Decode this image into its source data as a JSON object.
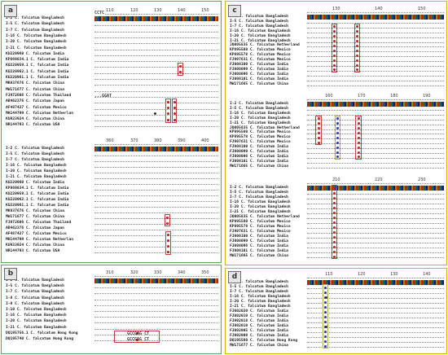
{
  "colors": {
    "green_border": "#5aa65a",
    "gold_border": "#d2b100",
    "highlight": "#c93a3a",
    "olive": "#b8a24a"
  },
  "panels": {
    "a": {
      "label": "a",
      "blocks": [
        {
          "ticks": [
            "110",
            "120",
            "130",
            "140",
            "150"
          ],
          "names": [
            "I-2 C. falcatum Bangladesh",
            "I-5 C. falcatum Bangladesh",
            "I-7 C. falcatum Bangladesh",
            "I-16 C. falcatum Bangladesh",
            "I-20 C. falcatum Bangladesh",
            "I-21 C. falcatum Bangladesh",
            "KU220960 C. falcatum India",
            "KP869834.1 C. falcatum India",
            "KU220959.1 C. falcatum India",
            "KU220962.1 C. falcatum India",
            "KU220961.1 C. falcatum India",
            "MK937676 C. falcatum China",
            "MW171677 C. falcatum China",
            "FJ972606 C. falcatum Thailand",
            "AB462376 C. falcatum Japan",
            "AF487427 C. falcatum Mexico",
            "MH144799 C. falcatum Netherlan",
            "KU933924 C. falcatum China",
            "NR144793 C. falcatum USA"
          ],
          "fragments": [
            "CCTC",
            "...GGAT"
          ]
        },
        {
          "ticks": [
            "360",
            "370",
            "380",
            "390",
            "400"
          ],
          "names": [
            "I-2 C. falcatum Bangladesh",
            "I-5 C. falcatum Bangladesh",
            "I-7 C. falcatum Bangladesh",
            "I-16 C. falcatum Bangladesh",
            "I-20 C. falcatum Bangladesh",
            "I-21 C. falcatum Bangladesh",
            "KU220960 C. falcatum India",
            "KP869834.1 C. falcatum India",
            "KU220959.1 C. falcatum India",
            "KU220962.1 C. falcatum India",
            "KU220961.1 C. falcatum India",
            "MK937676 C. falcatum China",
            "MW171677 C. falcatum China",
            "FJ972606 C. falcatum Thailand",
            "AB462376 C. falcatum Japan",
            "AF487427 C. falcatum Mexico",
            "MH144799 C. falcatum Netherlan",
            "KU933924 C. falcatum China",
            "NR144793 C. falcatum USA"
          ],
          "fragments": []
        }
      ]
    },
    "b": {
      "label": "b",
      "blocks": [
        {
          "ticks": [
            "310",
            "320",
            "330",
            "340",
            "350"
          ],
          "names": [
            "I-2 C. falcatum Bangladesh",
            "I-5 C. falcatum Bangladesh",
            "I-7 C. falcatum Bangladesh",
            "I-8 C. falcatum Bangladesh",
            "I-9 C. falcatum Bangladesh",
            "I-10 C. falcatum Bangladesh",
            "I-16 C. falcatum Bangladesh",
            "I-20 C. falcatum Bangladesh",
            "I-21 C. falcatum Bangladesh",
            "DQ195756.1 C. falcatum Hong Kong",
            "DQ195740 C. falcatum Hong Kong"
          ],
          "fragments": [
            "GCCGAG CT",
            "GCCGAG CT"
          ]
        }
      ]
    },
    "c": {
      "label": "c",
      "blocks": [
        {
          "ticks": [
            "130",
            "140",
            "150"
          ],
          "names": [
            "I-2 C. falcatum Bangladesh",
            "I-5 C. falcatum Bangladesh",
            "I-7 C. falcatum Bangladesh",
            "I-16 C. falcatum Bangladesh",
            "I-20 C. falcatum Bangladesh",
            "I-21 C. falcatum Bangladesh",
            "JQ005835 C. falcatum Netherland",
            "KP895580 C. falcatum Mexico",
            "KP895578 C. falcatum Mexico",
            "FJ907631 C. falcatum Mexico",
            "FJ008100 C. falcatum India",
            "FJ008099 C. falcatum India",
            "FJ008096 C. falcatum India",
            "FJ008101 C. falcatum India",
            "MW171665 C. falcatum China"
          ],
          "fragments": []
        },
        {
          "ticks": [
            "160",
            "170",
            "180",
            "190"
          ],
          "names": [
            "I-2 C. falcatum Bangladesh",
            "I-5 C. falcatum Bangladesh",
            "I-16 C. falcatum Bangladesh",
            "I-20 C. falcatum Bangladesh",
            "I-21 C. falcatum Bangladesh",
            "JQ005835 C. falcatum Netherland",
            "KP895580 C. falcatum Mexico",
            "KP895578 C. falcatum Mexico",
            "FJ907631 C. falcatum Mexico",
            "FJ008100 C. falcatum India",
            "FJ008099 C. falcatum India",
            "FJ008096 C. falcatum India",
            "FJ008101 C. falcatum India",
            "MW171665 C. falcatum China"
          ],
          "fragments": []
        },
        {
          "ticks": [
            "210",
            "220",
            "230"
          ],
          "names": [
            "I-2 C. falcatum Bangladesh",
            "I-5 C. falcatum Bangladesh",
            "I-7 C. falcatum Bangladesh",
            "I-16 C. falcatum Bangladesh",
            "I-20 C. falcatum Bangladesh",
            "I-21 C. falcatum Bangladesh",
            "JQ005835 C. falcatum Netherland",
            "KP895580 C. falcatum Mexico",
            "KP895578 C. falcatum Mexico",
            "FJ907631 C. falcatum Mexico",
            "FJ008100 C. falcatum India",
            "FJ008099 C. falcatum India",
            "FJ008096 C. falcatum India",
            "FJ008101 C. falcatum India",
            "MW171665 C. falcatum China"
          ],
          "fragments": []
        }
      ]
    },
    "d": {
      "label": "d",
      "blocks": [
        {
          "ticks": [
            "110",
            "120",
            "130",
            "140"
          ],
          "names": [
            "I-2 C. falcatum Bangladesh",
            "I-5 C. falcatum Bangladesh",
            "I-7 C. falcatum Bangladesh",
            "I-16 C. falcatum Bangladesh",
            "I-20 C. falcatum Bangladesh",
            "I-21 C. falcatum Bangladesh",
            "FJ002020 C. falcatum India",
            "FJ002019 C. falcatum India",
            "FJ002018 C. falcatum India",
            "FJ002010 C. falcatum India",
            "FJ002005 C. falcatum India",
            "FJ002000 C. falcatum India",
            "DQ195580 C. falcatum Hong Kong",
            "MW171677 C. falcatum China"
          ],
          "fragments": []
        }
      ]
    }
  }
}
